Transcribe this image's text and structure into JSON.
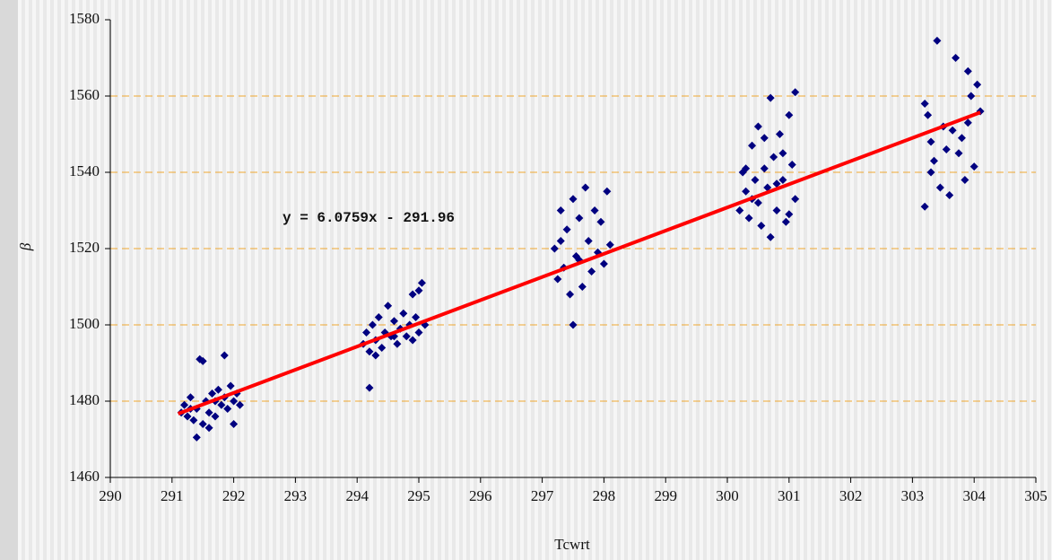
{
  "chart_data": {
    "type": "scatter",
    "x_label": "Tcwrt",
    "y_label": "β",
    "annotation": "y = 6.0759x - 291.96",
    "xlim": [
      290,
      305
    ],
    "xticks": [
      290,
      291,
      292,
      293,
      294,
      295,
      296,
      297,
      298,
      299,
      300,
      301,
      302,
      303,
      304,
      305
    ],
    "ylim": [
      1460,
      1580
    ],
    "yticks": [
      1460,
      1480,
      1500,
      1520,
      1540,
      1560,
      1580
    ],
    "grid": true,
    "series": [
      {
        "color": "#000080",
        "x": [
          291.15,
          291.2,
          291.25,
          291.3,
          291.35,
          291.4,
          291.45,
          291.5,
          291.5,
          291.55,
          291.6,
          291.65,
          291.7,
          291.75,
          291.8,
          291.85,
          291.9,
          291.95,
          292.0,
          292.05,
          292.1,
          291.4,
          291.6,
          291.85,
          292.0,
          291.3,
          291.7,
          294.1,
          294.15,
          294.2,
          294.2,
          294.25,
          294.3,
          294.35,
          294.4,
          294.45,
          294.5,
          294.55,
          294.6,
          294.65,
          294.7,
          294.75,
          294.8,
          294.85,
          294.9,
          294.95,
          295.0,
          295.05,
          295.1,
          294.3,
          294.6,
          294.9,
          295.0,
          297.2,
          297.25,
          297.3,
          297.35,
          297.4,
          297.45,
          297.5,
          297.5,
          297.55,
          297.6,
          297.65,
          297.7,
          297.75,
          297.8,
          297.85,
          297.9,
          297.95,
          298.0,
          298.05,
          298.1,
          297.3,
          297.6,
          300.2,
          300.25,
          300.3,
          300.35,
          300.4,
          300.45,
          300.5,
          300.5,
          300.55,
          300.6,
          300.65,
          300.7,
          300.7,
          300.75,
          300.8,
          300.85,
          300.9,
          300.95,
          301.0,
          301.05,
          301.1,
          301.1,
          300.4,
          300.6,
          300.8,
          301.0,
          300.9,
          300.3,
          303.2,
          303.25,
          303.3,
          303.3,
          303.4,
          303.45,
          303.5,
          303.55,
          303.6,
          303.65,
          303.7,
          303.75,
          303.8,
          303.85,
          303.9,
          303.95,
          304.0,
          304.05,
          304.1,
          303.2,
          303.35,
          303.9
        ],
        "values": [
          1477,
          1479,
          1476,
          1481,
          1475,
          1478,
          1491,
          1490.5,
          1474,
          1480,
          1477,
          1482,
          1476,
          1483,
          1479,
          1481,
          1478,
          1484,
          1480,
          1482,
          1479,
          1470.5,
          1473,
          1492,
          1474,
          1478,
          1480,
          1495,
          1498,
          1493,
          1483.5,
          1500,
          1496,
          1502,
          1494,
          1498,
          1505,
          1497,
          1501,
          1495,
          1499,
          1503,
          1497,
          1500,
          1508,
          1502,
          1498,
          1511,
          1500,
          1492,
          1497,
          1496,
          1509,
          1520,
          1512,
          1530,
          1515,
          1525,
          1508,
          1533,
          1500,
          1518,
          1528,
          1510,
          1536,
          1522,
          1514,
          1530,
          1519,
          1527,
          1516,
          1535,
          1521,
          1522,
          1517,
          1530,
          1540,
          1535,
          1528,
          1547,
          1538,
          1552,
          1532,
          1526,
          1541,
          1536,
          1523,
          1559.5,
          1544,
          1530,
          1550,
          1538,
          1527,
          1555,
          1542,
          1533,
          1561,
          1533,
          1549,
          1537,
          1529,
          1545,
          1541,
          1531,
          1555,
          1548,
          1540,
          1574.5,
          1536,
          1552,
          1546,
          1534,
          1551,
          1570,
          1545,
          1549,
          1538,
          1566.5,
          1560,
          1541.5,
          1563,
          1556,
          1558,
          1543,
          1553
        ]
      }
    ],
    "trendline": {
      "color": "#ff0000",
      "x": [
        291.1,
        304.1
      ],
      "values": [
        1476.7,
        1555.7
      ]
    }
  }
}
